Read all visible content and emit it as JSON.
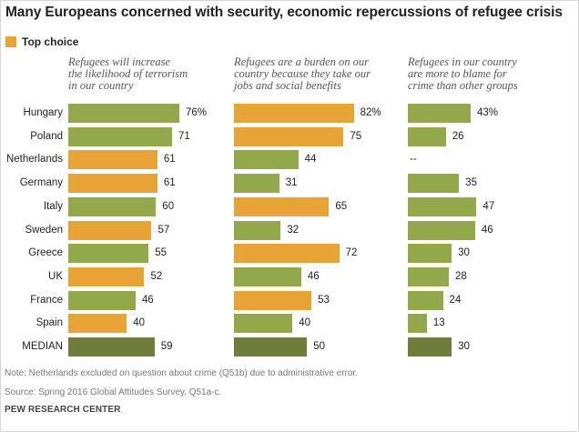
{
  "title": "Many Europeans concerned with security, economic repercussions of refugee crisis",
  "legend": {
    "label": "Top choice",
    "color": "#e8a337"
  },
  "colors": {
    "highlight": "#e8a337",
    "normal": "#93a84a",
    "median": "#6e7d3a"
  },
  "chart_data": {
    "type": "bar",
    "orientation": "horizontal",
    "categories": [
      "Hungary",
      "Poland",
      "Netherlands",
      "Germany",
      "Italy",
      "Sweden",
      "Greece",
      "UK",
      "France",
      "Spain",
      "MEDIAN"
    ],
    "series": [
      {
        "name": "Refugees will increase\nthe likelihood of terrorism\nin our country",
        "values": [
          76,
          71,
          61,
          61,
          60,
          57,
          55,
          52,
          46,
          40,
          59
        ],
        "labels": [
          "76%",
          "71",
          "61",
          "61",
          "60",
          "57",
          "55",
          "52",
          "46",
          "40",
          "59"
        ],
        "top_choice": [
          false,
          false,
          true,
          true,
          false,
          true,
          false,
          true,
          false,
          true,
          false
        ]
      },
      {
        "name": "Refugees are a burden on our\ncountry because they take our\njobs and social benefits",
        "values": [
          82,
          75,
          44,
          31,
          65,
          32,
          72,
          46,
          53,
          40,
          50
        ],
        "labels": [
          "82%",
          "75",
          "44",
          "31",
          "65",
          "32",
          "72",
          "46",
          "53",
          "40",
          "50"
        ],
        "top_choice": [
          true,
          true,
          false,
          false,
          true,
          false,
          true,
          false,
          true,
          false,
          false
        ]
      },
      {
        "name": "Refugees in our country\nare more to blame for\ncrime than other groups",
        "values": [
          43,
          26,
          null,
          35,
          47,
          46,
          30,
          28,
          24,
          13,
          30
        ],
        "labels": [
          "43%",
          "26",
          "--",
          "35",
          "47",
          "46",
          "30",
          "28",
          "24",
          "13",
          "30"
        ],
        "top_choice": [
          false,
          false,
          false,
          false,
          false,
          false,
          false,
          false,
          false,
          false,
          false
        ]
      }
    ],
    "xlim": [
      0,
      100
    ]
  },
  "notes": {
    "note": "Note: Netherlands excluded on question about crime (Q51b) due to administrative error.",
    "source": "Source: Spring 2016 Global Attitudes Survey. Q51a-c.",
    "org": "PEW RESEARCH CENTER"
  }
}
